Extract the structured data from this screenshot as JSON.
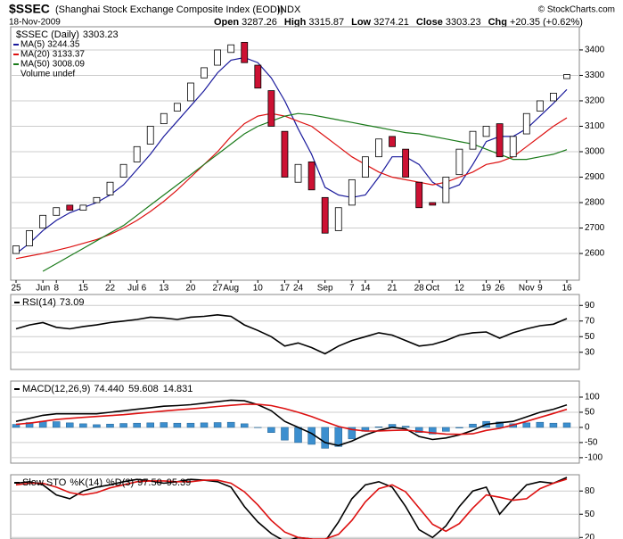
{
  "header": {
    "symbol": "$SSEC",
    "name": "(Shanghai Stock Exchange Composite Index (EOD))",
    "exchange": "INDX",
    "date": "18-Nov-2009",
    "source": "© StockCharts.com",
    "stats": [
      {
        "label": "Open",
        "value": "3287.26"
      },
      {
        "label": "High",
        "value": "3315.87"
      },
      {
        "label": "Low",
        "value": "3274.21"
      },
      {
        "label": "Close",
        "value": "3303.23"
      },
      {
        "label": "Chg",
        "value": "+20.35 (+0.62%)"
      }
    ]
  },
  "chart_data": [
    {
      "type": "candlestick",
      "name": "$SSEC (Daily)",
      "volume_label": "Volume undef",
      "categories": [
        "25",
        null,
        "Jun",
        "8",
        null,
        "15",
        null,
        "22",
        null,
        "Jul 6",
        null,
        "13",
        null,
        "20",
        null,
        "27",
        "Aug",
        null,
        "10",
        null,
        "17",
        "24",
        null,
        "Sep",
        null,
        "7",
        "14",
        null,
        "21",
        null,
        "28",
        "Oct",
        null,
        "12",
        null,
        "19",
        "26",
        null,
        "Nov",
        "9",
        null,
        "16"
      ],
      "open": [
        2600,
        2630,
        2700,
        2750,
        2790,
        2770,
        2800,
        2830,
        2900,
        2960,
        3030,
        3110,
        3160,
        3200,
        3290,
        3340,
        3390,
        3430,
        3340,
        3240,
        3080,
        2880,
        2960,
        2820,
        2690,
        2790,
        2900,
        2980,
        3060,
        3010,
        2880,
        2800,
        2800,
        2910,
        3010,
        3060,
        3110,
        2980,
        3070,
        3160,
        3200,
        3287.26
      ],
      "close": [
        2630,
        2690,
        2750,
        2780,
        2770,
        2790,
        2820,
        2880,
        2950,
        3020,
        3100,
        3150,
        3190,
        3270,
        3330,
        3400,
        3420,
        3350,
        3250,
        3100,
        2900,
        2950,
        2850,
        2680,
        2780,
        2890,
        2980,
        3050,
        3020,
        2900,
        2780,
        2790,
        2900,
        3010,
        3080,
        3100,
        2980,
        3060,
        3150,
        3200,
        3230,
        3303.23
      ],
      "up_color": "#ffffff",
      "down_color": "#cc1133",
      "series": [
        {
          "name": "MA(5)",
          "color": "#1a1a9c",
          "values": [
            2600,
            2640,
            2690,
            2730,
            2760,
            2780,
            2800,
            2830,
            2870,
            2930,
            2990,
            3060,
            3120,
            3180,
            3240,
            3310,
            3360,
            3370,
            3350,
            3290,
            3200,
            3090,
            2990,
            2860,
            2830,
            2820,
            2830,
            2900,
            2980,
            2980,
            2950,
            2880,
            2850,
            2870,
            2950,
            3040,
            3060,
            3060,
            3090,
            3140,
            3190,
            3244.35
          ]
        },
        {
          "name": "MA(20)",
          "color": "#dd1111",
          "values": [
            2580,
            2590,
            2600,
            2612,
            2625,
            2640,
            2655,
            2675,
            2700,
            2730,
            2765,
            2805,
            2850,
            2900,
            2950,
            3000,
            3060,
            3110,
            3140,
            3150,
            3140,
            3120,
            3100,
            3060,
            3020,
            2980,
            2950,
            2920,
            2900,
            2890,
            2880,
            2870,
            2880,
            2900,
            2920,
            2950,
            2960,
            2980,
            3020,
            3060,
            3100,
            3133.37
          ]
        },
        {
          "name": "MA(50)",
          "color": "#1a7a1a",
          "values": [
            null,
            null,
            2530,
            2560,
            2590,
            2620,
            2650,
            2680,
            2710,
            2750,
            2790,
            2830,
            2870,
            2910,
            2950,
            2990,
            3030,
            3070,
            3100,
            3120,
            3140,
            3150,
            3145,
            3135,
            3125,
            3115,
            3105,
            3095,
            3085,
            3075,
            3070,
            3060,
            3050,
            3040,
            3030,
            3010,
            2990,
            2970,
            2970,
            2980,
            2990,
            3008.09
          ]
        }
      ],
      "ylim": [
        2495,
        3491
      ],
      "yticks": [
        2600,
        2700,
        2800,
        2900,
        3000,
        3100,
        3200,
        3300,
        3400
      ],
      "grid": true
    },
    {
      "type": "line",
      "series": [
        {
          "name": "RSI(14)",
          "color": "#000000",
          "values": [
            60,
            65,
            68,
            62,
            60,
            63,
            65,
            68,
            70,
            72,
            75,
            74,
            72,
            75,
            76,
            78,
            76,
            65,
            58,
            50,
            38,
            42,
            36,
            28,
            38,
            45,
            50,
            55,
            52,
            45,
            38,
            40,
            45,
            52,
            55,
            56,
            48,
            55,
            60,
            64,
            66,
            73.09
          ]
        }
      ],
      "ylim": [
        8,
        104
      ],
      "yticks": [
        30,
        50,
        70,
        90
      ],
      "grid": true
    },
    {
      "type": "macd",
      "series": [
        {
          "name": "MACD(12,26,9)",
          "color": "#000000",
          "value_label": "74.440",
          "values": [
            20,
            30,
            40,
            45,
            45,
            45,
            45,
            50,
            55,
            60,
            65,
            70,
            72,
            75,
            80,
            85,
            90,
            88,
            75,
            55,
            20,
            0,
            -20,
            -50,
            -60,
            -45,
            -25,
            -10,
            0,
            -5,
            -30,
            -40,
            -35,
            -25,
            -10,
            10,
            15,
            20,
            35,
            50,
            60,
            74.44
          ]
        },
        {
          "name": "",
          "color": "#dd1111",
          "value_label": "59.608",
          "values": [
            10,
            14,
            20,
            26,
            30,
            33,
            36,
            39,
            42,
            46,
            50,
            54,
            58,
            61,
            65,
            69,
            73,
            76,
            76,
            72,
            62,
            50,
            36,
            19,
            3,
            -7,
            -12,
            -12,
            -10,
            -9,
            -13,
            -18,
            -22,
            -23,
            -21,
            -10,
            -3,
            8,
            20,
            33,
            46,
            59.608
          ]
        },
        {
          "name": "",
          "color": "#3c8fcf",
          "value_label": "14.831",
          "bars": true,
          "values": [
            10,
            16,
            20,
            19,
            15,
            12,
            9,
            11,
            13,
            14,
            15,
            16,
            14,
            14,
            15,
            16,
            17,
            12,
            -1,
            -17,
            -42,
            -50,
            -56,
            -69,
            -63,
            -38,
            -13,
            2,
            10,
            4,
            -17,
            -22,
            -13,
            -2,
            11,
            20,
            18,
            12,
            15,
            17,
            14,
            14.831
          ]
        }
      ],
      "ylim": [
        -118,
        153
      ],
      "yticks": [
        -100,
        -50,
        0,
        50,
        100
      ],
      "grid": true
    },
    {
      "type": "line",
      "title": "Slow STO",
      "series": [
        {
          "name": "%K(14)",
          "color": "#000000",
          "value_label": "97.50",
          "values": [
            90,
            92,
            88,
            75,
            70,
            80,
            85,
            88,
            92,
            95,
            93,
            90,
            92,
            95,
            94,
            92,
            85,
            60,
            40,
            25,
            15,
            20,
            18,
            15,
            40,
            70,
            88,
            92,
            85,
            60,
            30,
            20,
            35,
            60,
            80,
            85,
            50,
            70,
            88,
            92,
            90,
            97.5
          ]
        },
        {
          "name": "%D(3)",
          "color": "#dd1111",
          "value_label": "95.39",
          "values": [
            88,
            90,
            90,
            85,
            78,
            75,
            78,
            84,
            88,
            92,
            93,
            93,
            92,
            92,
            94,
            94,
            90,
            79,
            62,
            42,
            27,
            20,
            18,
            18,
            24,
            42,
            66,
            83,
            88,
            79,
            58,
            37,
            28,
            38,
            58,
            75,
            72,
            68,
            70,
            83,
            90,
            95.39
          ]
        }
      ],
      "ylim": [
        18,
        101
      ],
      "yticks": [
        20,
        50,
        80
      ],
      "grid": true
    }
  ]
}
